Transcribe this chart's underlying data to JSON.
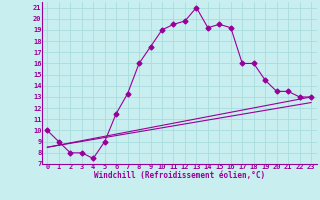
{
  "xlabel": "Windchill (Refroidissement éolien,°C)",
  "bg_color": "#c8eef0",
  "grid_color": "#aadddd",
  "line_color": "#990099",
  "xlim": [
    -0.5,
    23.5
  ],
  "ylim": [
    7,
    21.5
  ],
  "xticks": [
    0,
    1,
    2,
    3,
    4,
    5,
    6,
    7,
    8,
    9,
    10,
    11,
    12,
    13,
    14,
    15,
    16,
    17,
    18,
    19,
    20,
    21,
    22,
    23
  ],
  "yticks": [
    7,
    8,
    9,
    10,
    11,
    12,
    13,
    14,
    15,
    16,
    17,
    18,
    19,
    20,
    21
  ],
  "curve1_x": [
    0,
    1,
    2,
    3,
    4,
    5,
    6,
    7,
    8,
    9,
    10,
    11,
    12,
    13,
    14,
    15,
    16,
    17,
    18,
    19,
    20,
    21,
    22,
    23
  ],
  "curve1_y": [
    10,
    9,
    8,
    8,
    7.5,
    9,
    11.5,
    13.3,
    16,
    17.5,
    19,
    19.5,
    19.8,
    21,
    19.2,
    19.5,
    19.2,
    16,
    16,
    14.5,
    13.5,
    13.5,
    13,
    13
  ],
  "curve2_x": [
    0,
    23
  ],
  "curve2_y": [
    8.5,
    13.0
  ],
  "curve3_x": [
    0,
    23
  ],
  "curve3_y": [
    8.5,
    12.5
  ],
  "marker_size": 2.5,
  "font_family": "monospace",
  "tick_fontsize": 5.0,
  "xlabel_fontsize": 5.5
}
